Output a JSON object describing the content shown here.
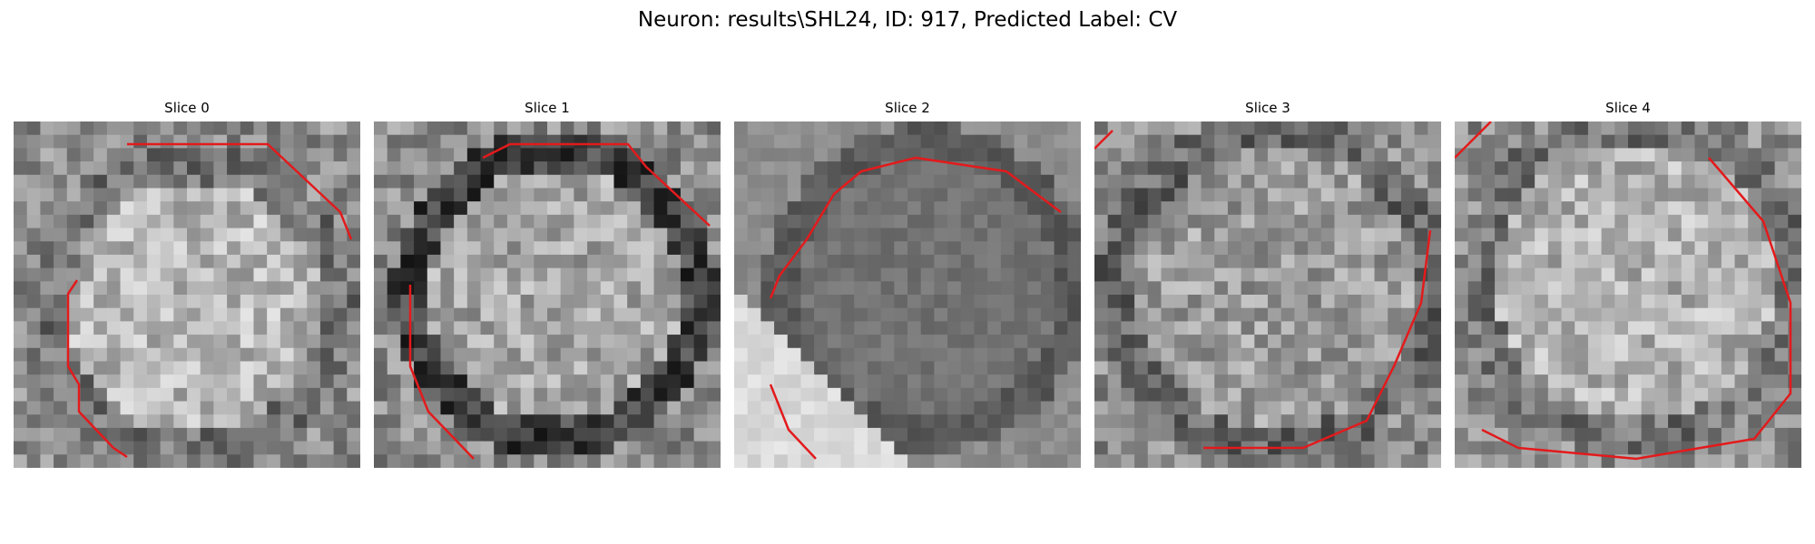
{
  "figure": {
    "title": "Neuron: results\\SHL24, ID: 917, Predicted Label: CV"
  },
  "panels": [
    {
      "title": "Slice 0",
      "ring_color": "#e31a1c"
    },
    {
      "title": "Slice 1",
      "ring_color": "#e31a1c"
    },
    {
      "title": "Slice 2",
      "ring_color": "#e31a1c"
    },
    {
      "title": "Slice 3",
      "ring_color": "#e31a1c"
    },
    {
      "title": "Slice 4",
      "ring_color": "#e31a1c"
    }
  ]
}
